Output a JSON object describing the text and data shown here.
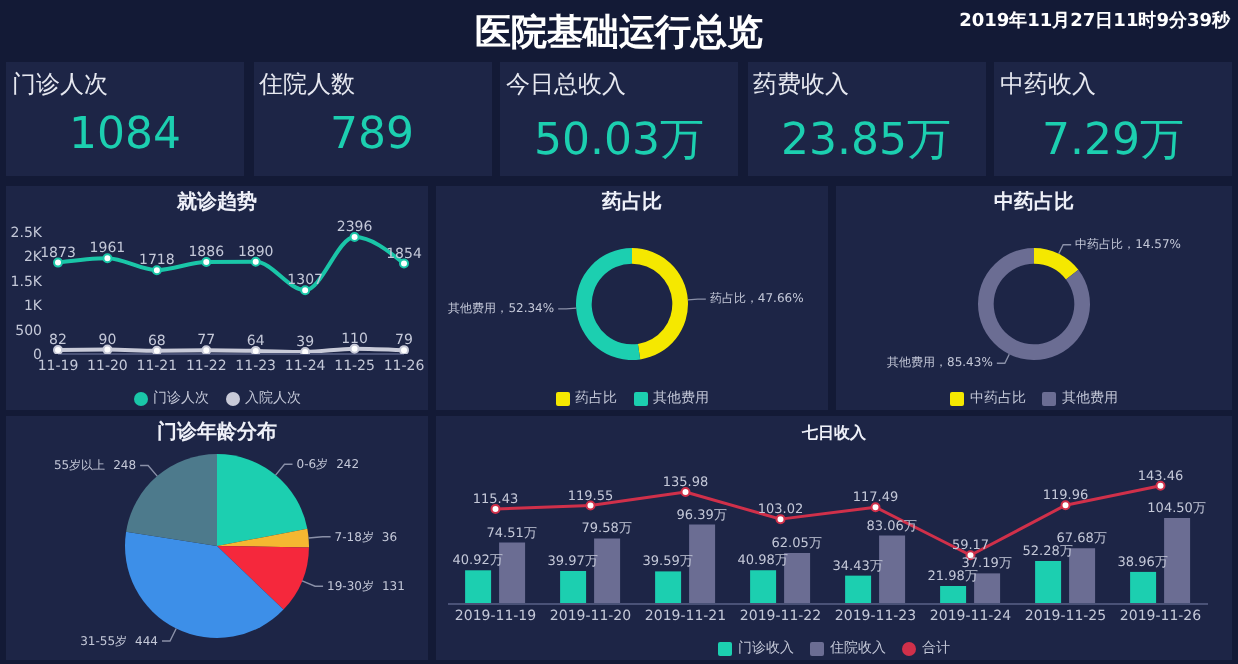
{
  "chart_data": [
    {
      "type": "other",
      "title": "医院基础运行总览",
      "subtitle": "2019年11月27日11时9分39秒",
      "categories": [
        "门诊人次",
        "住院人数",
        "今日总收入",
        "药费收入",
        "中药收入"
      ],
      "values": [
        1084,
        789,
        50.03,
        23.85,
        7.29
      ],
      "value_labels": [
        "1084",
        "789",
        "50.03万",
        "23.85万",
        "7.29万"
      ]
    },
    {
      "type": "line",
      "title": "就诊趋势",
      "categories": [
        "11-19",
        "11-20",
        "11-21",
        "11-22",
        "11-23",
        "11-24",
        "11-25",
        "11-26"
      ],
      "series": [
        {
          "name": "门诊人次",
          "color": "#1ac6a8",
          "values": [
            1873,
            1961,
            1718,
            1886,
            1890,
            1307,
            2396,
            1854
          ]
        },
        {
          "name": "入院人次",
          "color": "#c8cad8",
          "values": [
            82,
            90,
            68,
            77,
            64,
            39,
            110,
            79
          ]
        }
      ],
      "ylim": [
        0,
        2500
      ],
      "yticks": [
        0,
        500,
        {
          "value": 1000,
          "label": "1K"
        },
        {
          "value": 1500,
          "label": "1.5K"
        },
        {
          "value": 2000,
          "label": "2K"
        },
        {
          "value": 2500,
          "label": "2.5K"
        }
      ],
      "data_labels": true,
      "legend": "bottom",
      "marker": "circle"
    },
    {
      "type": "donut",
      "title": "药占比",
      "categories": [
        "药占比",
        "其他费用"
      ],
      "values": [
        47.66,
        52.34
      ],
      "colors": [
        "#f5e800",
        "#1ccfb0"
      ],
      "value_labels": [
        "药占比，47.66%",
        "其他费用，52.34%"
      ],
      "legend": "bottom"
    },
    {
      "type": "donut",
      "title": "中药占比",
      "categories": [
        "中药占比",
        "其他费用"
      ],
      "values": [
        14.57,
        85.43
      ],
      "colors": [
        "#f5e800",
        "#6b6d93"
      ],
      "value_labels": [
        "中药占比，14.57%",
        "其他费用，85.43%"
      ],
      "legend": "bottom"
    },
    {
      "type": "pie",
      "title": "门诊年龄分布",
      "categories": [
        "0-6岁",
        "7-18岁",
        "19-30岁",
        "31-55岁",
        "55岁以上"
      ],
      "values": [
        242,
        36,
        131,
        444,
        248
      ],
      "colors": [
        "#1ccfb0",
        "#f5b731",
        "#f5283c",
        "#3d8fe8",
        "#4d7a8c"
      ],
      "data_labels": true
    },
    {
      "type": "bar",
      "title": "七日收入",
      "categories": [
        "2019-11-19",
        "2019-11-20",
        "2019-11-21",
        "2019-11-22",
        "2019-11-23",
        "2019-11-24",
        "2019-11-25",
        "2019-11-26"
      ],
      "series": [
        {
          "name": "门诊收入",
          "color": "#1ccfb0",
          "values": [
            40.92,
            39.97,
            39.59,
            40.98,
            34.43,
            21.98,
            52.28,
            38.96
          ],
          "value_labels": [
            "40.92万",
            "39.97万",
            "39.59万",
            "40.98万",
            "34.43万",
            "21.98万",
            "52.28万",
            "38.96万"
          ]
        },
        {
          "name": "住院收入",
          "color": "#6b6d93",
          "values": [
            74.51,
            79.58,
            96.39,
            62.05,
            83.06,
            37.19,
            67.68,
            104.5
          ],
          "value_labels": [
            "74.51万",
            "79.58万",
            "96.39万",
            "62.05万",
            "83.06万",
            "37.19万",
            "67.68万",
            "104.50万"
          ]
        },
        {
          "name": "合计",
          "type": "line",
          "color": "#d0304a",
          "marker": "circle",
          "values": [
            115.43,
            119.55,
            135.98,
            103.02,
            117.49,
            59.17,
            119.96,
            143.46
          ],
          "value_labels": [
            "115.43",
            "119.55",
            "135.98",
            "103.02",
            "117.49",
            "59.17",
            "119.96",
            "143.46"
          ]
        }
      ],
      "legend": "bottom"
    }
  ]
}
